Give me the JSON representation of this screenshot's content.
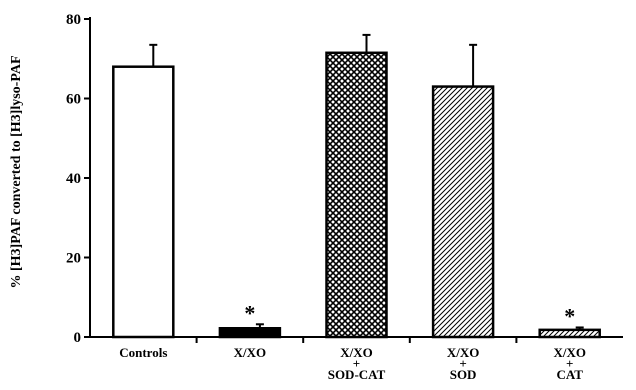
{
  "chart_data": {
    "type": "bar",
    "title": "",
    "xlabel": "",
    "ylabel": "% [H3]PAF converted to [H3]lyso-PAF",
    "ylim": [
      0,
      80
    ],
    "yticks": [
      0,
      20,
      40,
      60,
      80
    ],
    "grid": false,
    "categories": [
      [
        "Controls"
      ],
      [
        "X/XO"
      ],
      [
        "X/XO",
        "+",
        "SOD-CAT"
      ],
      [
        "X/XO",
        "+",
        "SOD"
      ],
      [
        "X/XO",
        "+",
        "CAT"
      ]
    ],
    "values": [
      68,
      2.2,
      71.5,
      63,
      1.8
    ],
    "errors": [
      5.5,
      1.0,
      4.5,
      10.5,
      0.6
    ],
    "significance": [
      "",
      "*",
      "",
      "",
      "*"
    ],
    "fills": [
      "white",
      "solid-black",
      "crosshatch",
      "diagonal-hatch",
      "diagonal-hatch"
    ],
    "colors": {
      "bar_stroke": "#000000",
      "solid": "#000000",
      "background": "#ffffff"
    }
  }
}
